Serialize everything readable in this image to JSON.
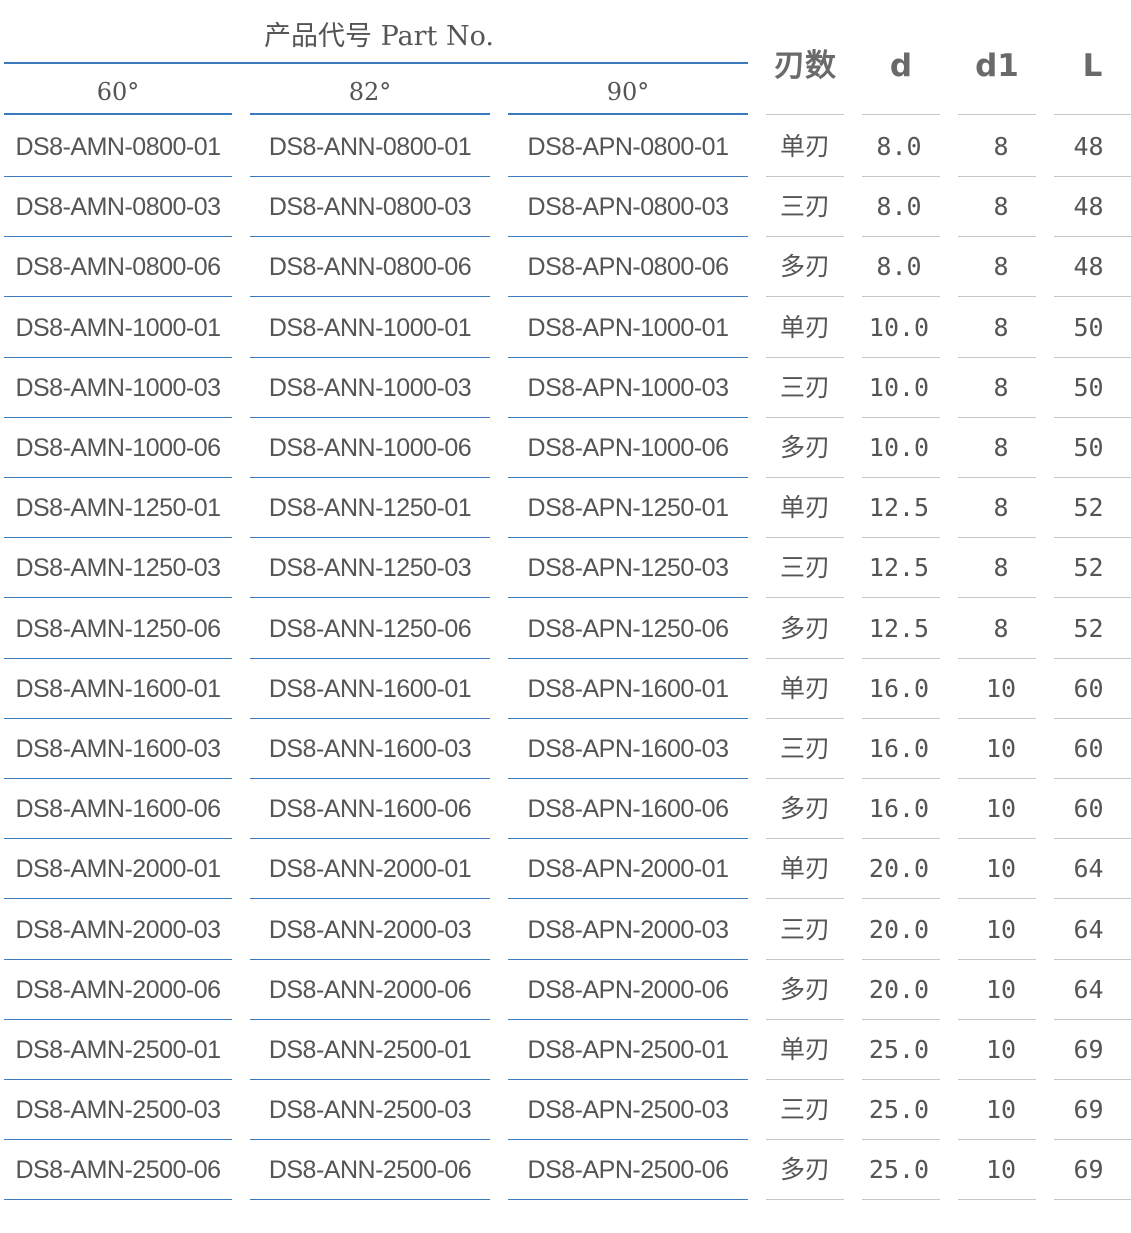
{
  "header": {
    "title": "产品代号 Part No.",
    "angles": [
      "60°",
      "82°",
      "90°"
    ],
    "specs": [
      "刃数",
      "d",
      "d1",
      "L"
    ]
  },
  "rows": [
    {
      "a60": "DS8-AMN-0800-01",
      "a82": "DS8-ANN-0800-01",
      "a90": "DS8-APN-0800-01",
      "edges": "单刃",
      "d": "8.0",
      "d1": "8",
      "L": "48"
    },
    {
      "a60": "DS8-AMN-0800-03",
      "a82": "DS8-ANN-0800-03",
      "a90": "DS8-APN-0800-03",
      "edges": "三刃",
      "d": "8.0",
      "d1": "8",
      "L": "48"
    },
    {
      "a60": "DS8-AMN-0800-06",
      "a82": "DS8-ANN-0800-06",
      "a90": "DS8-APN-0800-06",
      "edges": "多刃",
      "d": "8.0",
      "d1": "8",
      "L": "48"
    },
    {
      "a60": "DS8-AMN-1000-01",
      "a82": "DS8-ANN-1000-01",
      "a90": "DS8-APN-1000-01",
      "edges": "单刃",
      "d": "10.0",
      "d1": "8",
      "L": "50"
    },
    {
      "a60": "DS8-AMN-1000-03",
      "a82": "DS8-ANN-1000-03",
      "a90": "DS8-APN-1000-03",
      "edges": "三刃",
      "d": "10.0",
      "d1": "8",
      "L": "50"
    },
    {
      "a60": "DS8-AMN-1000-06",
      "a82": "DS8-ANN-1000-06",
      "a90": "DS8-APN-1000-06",
      "edges": "多刃",
      "d": "10.0",
      "d1": "8",
      "L": "50"
    },
    {
      "a60": "DS8-AMN-1250-01",
      "a82": "DS8-ANN-1250-01",
      "a90": "DS8-APN-1250-01",
      "edges": "单刃",
      "d": "12.5",
      "d1": "8",
      "L": "52"
    },
    {
      "a60": "DS8-AMN-1250-03",
      "a82": "DS8-ANN-1250-03",
      "a90": "DS8-APN-1250-03",
      "edges": "三刃",
      "d": "12.5",
      "d1": "8",
      "L": "52"
    },
    {
      "a60": "DS8-AMN-1250-06",
      "a82": "DS8-ANN-1250-06",
      "a90": "DS8-APN-1250-06",
      "edges": "多刃",
      "d": "12.5",
      "d1": "8",
      "L": "52"
    },
    {
      "a60": "DS8-AMN-1600-01",
      "a82": "DS8-ANN-1600-01",
      "a90": "DS8-APN-1600-01",
      "edges": "单刃",
      "d": "16.0",
      "d1": "10",
      "L": "60"
    },
    {
      "a60": "DS8-AMN-1600-03",
      "a82": "DS8-ANN-1600-03",
      "a90": "DS8-APN-1600-03",
      "edges": "三刃",
      "d": "16.0",
      "d1": "10",
      "L": "60"
    },
    {
      "a60": "DS8-AMN-1600-06",
      "a82": "DS8-ANN-1600-06",
      "a90": "DS8-APN-1600-06",
      "edges": "多刃",
      "d": "16.0",
      "d1": "10",
      "L": "60"
    },
    {
      "a60": "DS8-AMN-2000-01",
      "a82": "DS8-ANN-2000-01",
      "a90": "DS8-APN-2000-01",
      "edges": "单刃",
      "d": "20.0",
      "d1": "10",
      "L": "64"
    },
    {
      "a60": "DS8-AMN-2000-03",
      "a82": "DS8-ANN-2000-03",
      "a90": "DS8-APN-2000-03",
      "edges": "三刃",
      "d": "20.0",
      "d1": "10",
      "L": "64"
    },
    {
      "a60": "DS8-AMN-2000-06",
      "a82": "DS8-ANN-2000-06",
      "a90": "DS8-APN-2000-06",
      "edges": "多刃",
      "d": "20.0",
      "d1": "10",
      "L": "64"
    },
    {
      "a60": "DS8-AMN-2500-01",
      "a82": "DS8-ANN-2500-01",
      "a90": "DS8-APN-2500-01",
      "edges": "单刃",
      "d": "25.0",
      "d1": "10",
      "L": "69"
    },
    {
      "a60": "DS8-AMN-2500-03",
      "a82": "DS8-ANN-2500-03",
      "a90": "DS8-APN-2500-03",
      "edges": "三刃",
      "d": "25.0",
      "d1": "10",
      "L": "69"
    },
    {
      "a60": "DS8-AMN-2500-06",
      "a82": "DS8-ANN-2500-06",
      "a90": "DS8-APN-2500-06",
      "edges": "多刃",
      "d": "25.0",
      "d1": "10",
      "L": "69"
    }
  ],
  "colors": {
    "accent_line": "#3a7bbd",
    "gray_line": "#c8c8c8",
    "text": "#555555"
  }
}
